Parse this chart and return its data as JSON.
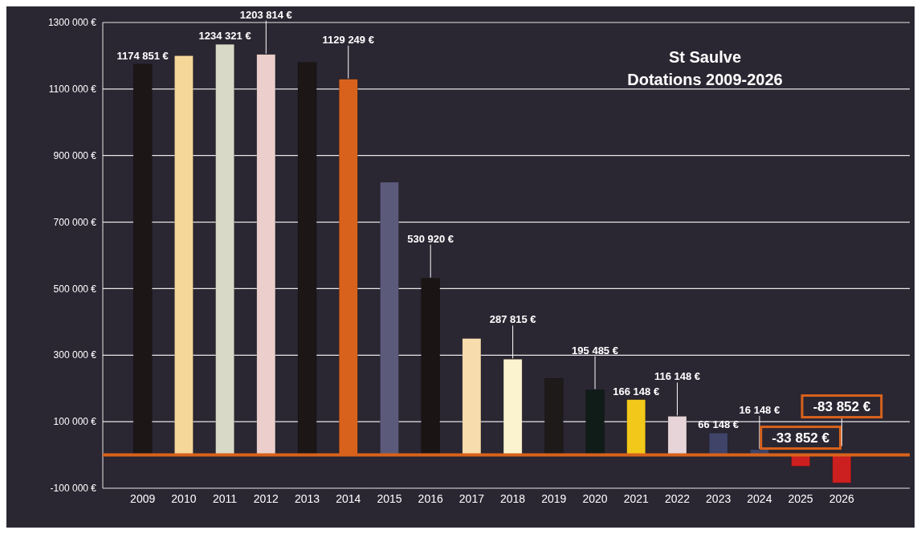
{
  "chart_data": {
    "type": "bar",
    "title": "St Saulve",
    "subtitle": "Dotations 2009-2026",
    "categories": [
      "2009",
      "2010",
      "2011",
      "2012",
      "2013",
      "2014",
      "2015",
      "2016",
      "2017",
      "2018",
      "2019",
      "2020",
      "2021",
      "2022",
      "2023",
      "2024",
      "2025",
      "2026"
    ],
    "values": [
      1174851,
      1200000,
      1234321,
      1203814,
      1180000,
      1129249,
      820000,
      530920,
      350000,
      287815,
      230000,
      195485,
      166148,
      116148,
      66148,
      16148,
      -33852,
      -83852
    ],
    "value_labels": [
      "1174 851 €",
      null,
      "1234 321 €",
      "1203 814 €",
      null,
      "1129 249 €",
      null,
      "530 920 €",
      null,
      "287 815 €",
      null,
      "195 485 €",
      "166 148 €",
      "116 148 €",
      "66 148 €",
      "16 148 €",
      "-33 852 €",
      "-83 852 €"
    ],
    "colors": [
      "#1c1616",
      "#f5d79a",
      "#d9d9c8",
      "#eccfcc",
      "#1c1616",
      "#d8621c",
      "#5c5a7a",
      "#1a1414",
      "#f7ddae",
      "#fbf3d0",
      "#1e1a1a",
      "#101c18",
      "#f2c81a",
      "#e6d4d8",
      "#3f4468",
      "#3f4468",
      "#cc1f1f",
      "#cc1f1f"
    ],
    "ylim": [
      -100000,
      1300000
    ],
    "yticks": [
      {
        "value": -100000,
        "label": "-100 000 €"
      },
      {
        "value": 100000,
        "label": "100 000 €"
      },
      {
        "value": 300000,
        "label": "300 000 €"
      },
      {
        "value": 500000,
        "label": "500 000 €"
      },
      {
        "value": 700000,
        "label": "700 000 €"
      },
      {
        "value": 900000,
        "label": "900 000 €"
      },
      {
        "value": 1100000,
        "label": "1100 000 €"
      },
      {
        "value": 1300000,
        "label": "1300 000 €"
      }
    ],
    "ref_lines": [
      {
        "axis": "y",
        "value": 0,
        "color": "#d8621c"
      }
    ],
    "grid": "y"
  }
}
